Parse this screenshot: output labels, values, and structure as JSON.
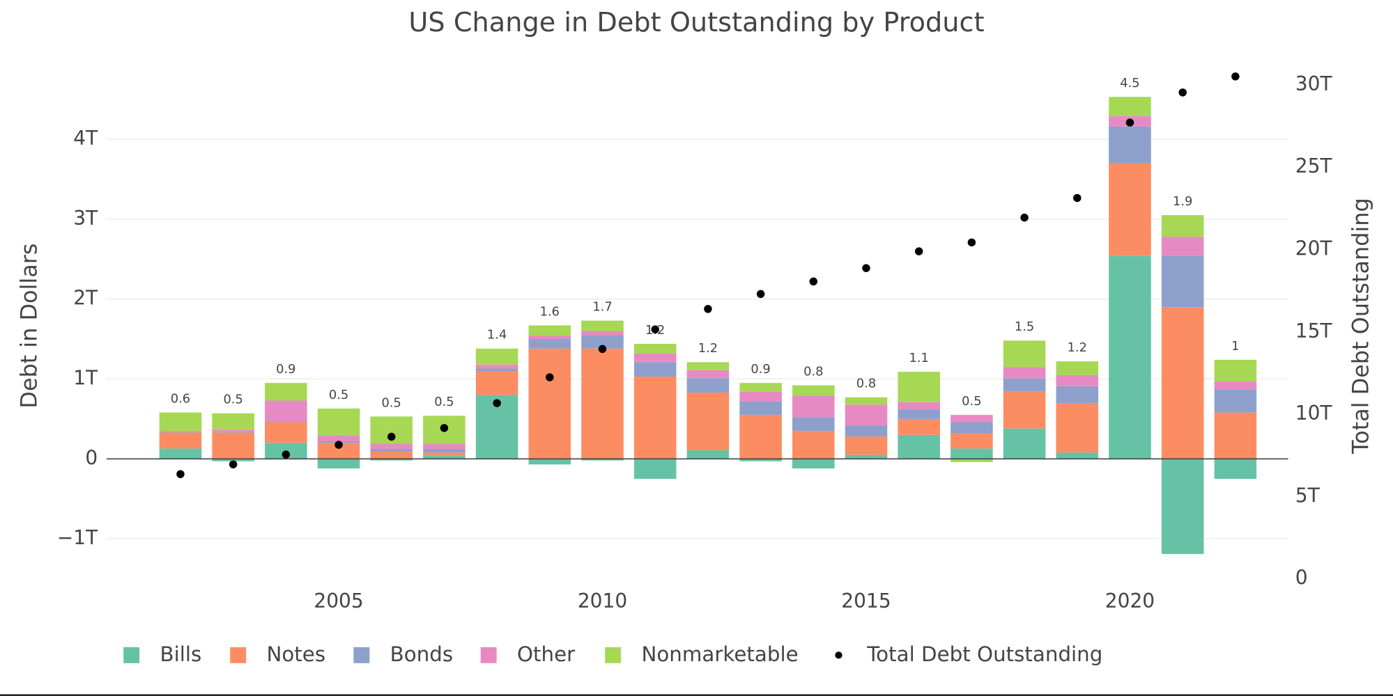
{
  "chart_data": {
    "type": "bar",
    "title": "US Change in Debt Outstanding by Product",
    "y_label": "Debt in Dollars",
    "y2_label": "Total Debt Outstanding",
    "x": [
      2002,
      2003,
      2004,
      2005,
      2006,
      2007,
      2008,
      2009,
      2010,
      2011,
      2012,
      2013,
      2014,
      2015,
      2016,
      2017,
      2018,
      2019,
      2020,
      2021,
      2022
    ],
    "xlim": [
      2000.6,
      2023
    ],
    "xticks": [
      2005,
      2010,
      2015,
      2020
    ],
    "ylim": [
      -1.59,
      5.02
    ],
    "yticks": [
      {
        "value": -1,
        "label": "−1T"
      },
      0,
      {
        "value": 1,
        "label": "1T"
      },
      {
        "value": 2,
        "label": "2T"
      },
      {
        "value": 3,
        "label": "3T"
      },
      {
        "value": 4,
        "label": "4T"
      }
    ],
    "y2lim": [
      -0.43,
      31.65
    ],
    "y2ticks": [
      0,
      {
        "value": 5,
        "label": "5T"
      },
      {
        "value": 10,
        "label": "10T"
      },
      {
        "value": 15,
        "label": "15T"
      },
      {
        "value": 20,
        "label": "20T"
      },
      {
        "value": 25,
        "label": "25T"
      },
      {
        "value": 30,
        "label": "30T"
      }
    ],
    "grid": true,
    "legend": "bottom",
    "series": [
      {
        "name": "Bills",
        "color": "#66c2a5",
        "values": [
          0.13,
          -0.03,
          0.2,
          -0.12,
          -0.02,
          0.04,
          0.8,
          -0.07,
          -0.02,
          -0.25,
          0.11,
          -0.03,
          -0.12,
          0.05,
          0.3,
          0.13,
          0.38,
          0.08,
          2.54,
          -1.19,
          -0.25
        ]
      },
      {
        "name": "Notes",
        "color": "#fc8d62",
        "values": [
          0.2,
          0.33,
          0.26,
          0.2,
          0.09,
          0.04,
          0.3,
          1.38,
          1.38,
          1.03,
          0.72,
          0.55,
          0.35,
          0.23,
          0.2,
          0.19,
          0.46,
          0.62,
          1.16,
          1.9,
          0.58
        ]
      },
      {
        "name": "Bonds",
        "color": "#8da0cb",
        "values": [
          0.01,
          0.01,
          0.01,
          0.02,
          0.03,
          0.04,
          0.03,
          0.12,
          0.17,
          0.18,
          0.18,
          0.17,
          0.17,
          0.14,
          0.12,
          0.14,
          0.17,
          0.21,
          0.46,
          0.64,
          0.29
        ]
      },
      {
        "name": "Other",
        "color": "#e78ac3",
        "values": [
          0.01,
          0.02,
          0.26,
          0.07,
          0.07,
          0.07,
          0.05,
          0.04,
          0.05,
          0.11,
          0.1,
          0.12,
          0.27,
          0.26,
          0.09,
          0.09,
          0.14,
          0.14,
          0.13,
          0.24,
          0.1
        ]
      },
      {
        "name": "Nonmarketable",
        "color": "#a6d854",
        "values": [
          0.23,
          0.21,
          0.22,
          0.34,
          0.34,
          0.35,
          0.2,
          0.13,
          0.13,
          0.12,
          0.1,
          0.11,
          0.13,
          0.09,
          0.38,
          -0.04,
          0.33,
          0.17,
          0.24,
          0.27,
          0.27
        ]
      },
      {
        "name": "Total Debt Outstanding",
        "type": "scatter",
        "axis": "y2",
        "color": "#000000",
        "values": [
          6.36,
          6.95,
          7.55,
          8.14,
          8.63,
          9.16,
          10.67,
          12.24,
          13.96,
          15.15,
          16.39,
          17.3,
          18.06,
          18.87,
          19.89,
          20.43,
          21.94,
          23.13,
          27.71,
          29.54,
          30.51
        ]
      }
    ],
    "totals": [
      0.6,
      0.5,
      0.9,
      0.5,
      0.5,
      0.5,
      1.4,
      1.6,
      1.7,
      1.2,
      1.2,
      0.9,
      0.8,
      0.8,
      1.1,
      0.5,
      1.5,
      1.2,
      4.5,
      1.9,
      1
    ]
  }
}
